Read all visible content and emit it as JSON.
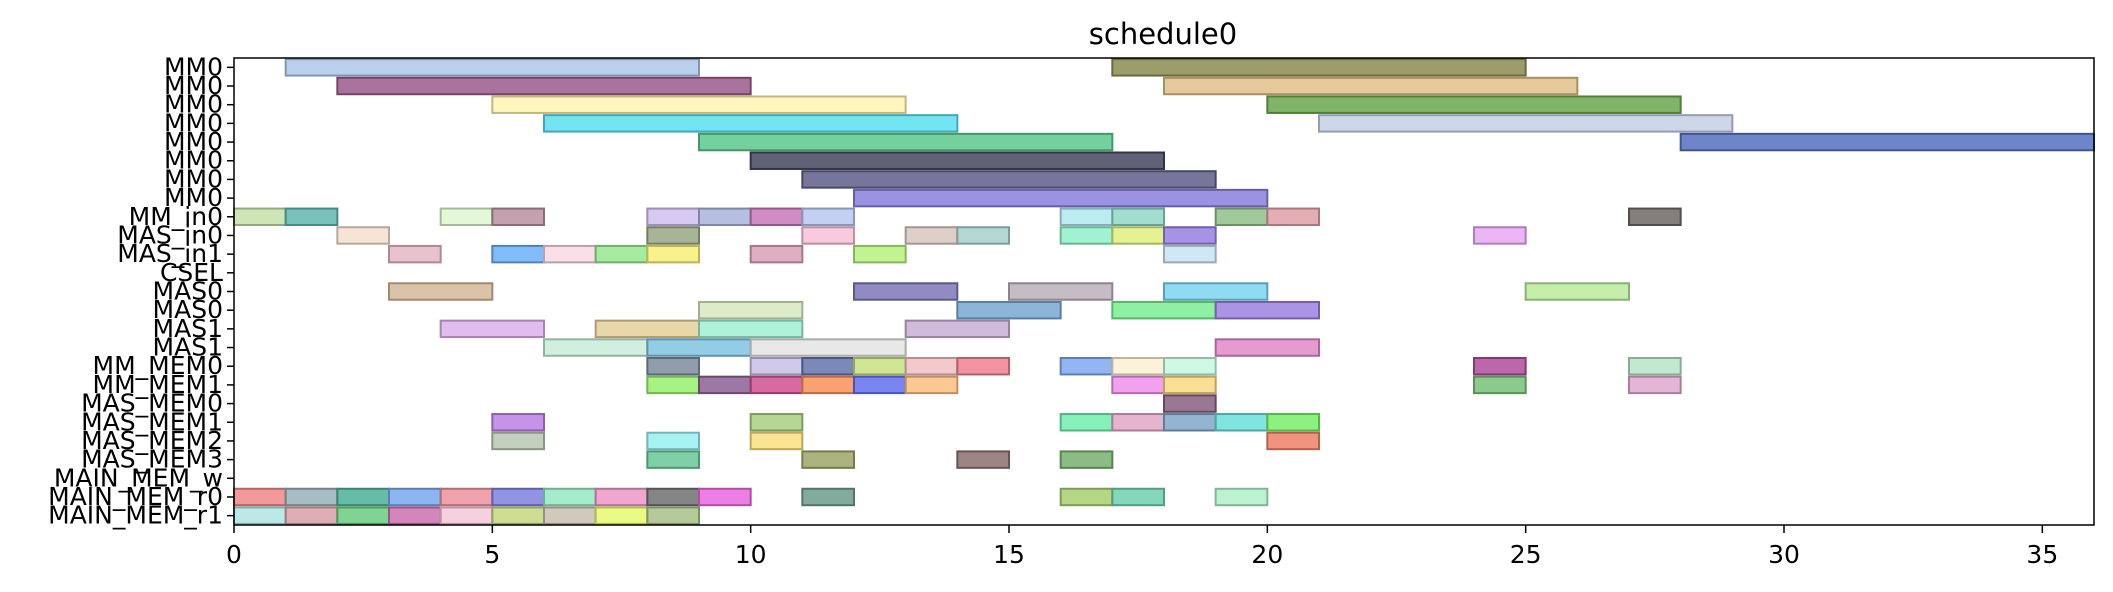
{
  "chart_data": {
    "type": "gantt",
    "title": "schedule0",
    "xlabel": "",
    "ylabel": "",
    "xlim": [
      0,
      36
    ],
    "xticks": [
      0,
      5,
      10,
      15,
      20,
      25,
      30,
      35
    ],
    "grid": false,
    "rows": [
      "MM0",
      "MM0",
      "MM0",
      "MM0",
      "MM0",
      "MM0",
      "MM0",
      "MM0",
      "MM_in0",
      "MAS_in0",
      "MAS_in1",
      "CSEL",
      "MAS0",
      "MAS0",
      "MAS1",
      "MAS1",
      "MM_MEM0",
      "MM_MEM1",
      "MAS_MEM0",
      "MAS_MEM1",
      "MAS_MEM2",
      "MAS_MEM3",
      "MAIN_MEM_w",
      "MAIN_MEM_r0",
      "MAIN_MEM_r1"
    ],
    "tasks": [
      {
        "row": 0,
        "start": 1,
        "end": 9,
        "color": "#aec7e8"
      },
      {
        "row": 0,
        "start": 17,
        "end": 25,
        "color": "#8c8c52"
      },
      {
        "row": 1,
        "start": 2,
        "end": 10,
        "color": "#9b5a8c"
      },
      {
        "row": 1,
        "start": 18,
        "end": 26,
        "color": "#e0c088"
      },
      {
        "row": 2,
        "start": 5,
        "end": 13,
        "color": "#fff5b0"
      },
      {
        "row": 2,
        "start": 20,
        "end": 28,
        "color": "#6aa84f"
      },
      {
        "row": 3,
        "start": 6,
        "end": 14,
        "color": "#5ae0f0"
      },
      {
        "row": 3,
        "start": 21,
        "end": 29,
        "color": "#c6d0e6"
      },
      {
        "row": 4,
        "start": 9,
        "end": 17,
        "color": "#5cc88c"
      },
      {
        "row": 4,
        "start": 28,
        "end": 36,
        "color": "#5470c0"
      },
      {
        "row": 5,
        "start": 10,
        "end": 18,
        "color": "#44445e"
      },
      {
        "row": 6,
        "start": 11,
        "end": 19,
        "color": "#5e5e88"
      },
      {
        "row": 7,
        "start": 12,
        "end": 20,
        "color": "#8a80dc"
      },
      {
        "row": 8,
        "start": 0,
        "end": 1,
        "color": "#c5e0a8"
      },
      {
        "row": 8,
        "start": 1,
        "end": 2,
        "color": "#5fb8b0"
      },
      {
        "row": 8,
        "start": 4,
        "end": 5,
        "color": "#ddf7d0"
      },
      {
        "row": 8,
        "start": 5,
        "end": 6,
        "color": "#b890a0"
      },
      {
        "row": 8,
        "start": 8,
        "end": 9,
        "color": "#d0c0f0"
      },
      {
        "row": 8,
        "start": 9,
        "end": 10,
        "color": "#aab4dc"
      },
      {
        "row": 8,
        "start": 10,
        "end": 11,
        "color": "#c878b8"
      },
      {
        "row": 8,
        "start": 11,
        "end": 12,
        "color": "#b8c8f0"
      },
      {
        "row": 8,
        "start": 16,
        "end": 17,
        "color": "#b0e8f0"
      },
      {
        "row": 8,
        "start": 17,
        "end": 18,
        "color": "#90d8c8"
      },
      {
        "row": 8,
        "start": 19,
        "end": 20,
        "color": "#90c088"
      },
      {
        "row": 8,
        "start": 20,
        "end": 21,
        "color": "#e0a0a8"
      },
      {
        "row": 8,
        "start": 27,
        "end": 28,
        "color": "#6e6864"
      },
      {
        "row": 9,
        "start": 2,
        "end": 3,
        "color": "#f5e0d0"
      },
      {
        "row": 9,
        "start": 8,
        "end": 9,
        "color": "#98a884"
      },
      {
        "row": 9,
        "start": 11,
        "end": 12,
        "color": "#f8c0d8"
      },
      {
        "row": 9,
        "start": 13,
        "end": 14,
        "color": "#d8c8c0"
      },
      {
        "row": 9,
        "start": 14,
        "end": 15,
        "color": "#a8d0cc"
      },
      {
        "row": 9,
        "start": 16,
        "end": 17,
        "color": "#90f0c8"
      },
      {
        "row": 9,
        "start": 17,
        "end": 18,
        "color": "#e0f080"
      },
      {
        "row": 9,
        "start": 18,
        "end": 19,
        "color": "#9880e0"
      },
      {
        "row": 9,
        "start": 24,
        "end": 25,
        "color": "#e8a8f4"
      },
      {
        "row": 10,
        "start": 3,
        "end": 4,
        "color": "#e4b8c4"
      },
      {
        "row": 10,
        "start": 5,
        "end": 6,
        "color": "#68b0f8"
      },
      {
        "row": 10,
        "start": 6,
        "end": 7,
        "color": "#f8d8e4"
      },
      {
        "row": 10,
        "start": 7,
        "end": 8,
        "color": "#98e890"
      },
      {
        "row": 10,
        "start": 8,
        "end": 9,
        "color": "#f8f078"
      },
      {
        "row": 10,
        "start": 10,
        "end": 11,
        "color": "#d8a0b8"
      },
      {
        "row": 10,
        "start": 12,
        "end": 13,
        "color": "#b8f080"
      },
      {
        "row": 10,
        "start": 18,
        "end": 19,
        "color": "#c8e4f4"
      },
      {
        "row": 12,
        "start": 3,
        "end": 5,
        "color": "#d4b898"
      },
      {
        "row": 12,
        "start": 12,
        "end": 14,
        "color": "#7c78b8"
      },
      {
        "row": 12,
        "start": 15,
        "end": 17,
        "color": "#bcb0bc"
      },
      {
        "row": 12,
        "start": 18,
        "end": 20,
        "color": "#7cd4f0"
      },
      {
        "row": 12,
        "start": 25,
        "end": 27,
        "color": "#b8ec9c"
      },
      {
        "row": 13,
        "start": 9,
        "end": 11,
        "color": "#d8e8c0"
      },
      {
        "row": 13,
        "start": 14,
        "end": 16,
        "color": "#78a8d4"
      },
      {
        "row": 13,
        "start": 17,
        "end": 19,
        "color": "#78f090"
      },
      {
        "row": 13,
        "start": 19,
        "end": 21,
        "color": "#9c80e0"
      },
      {
        "row": 14,
        "start": 4,
        "end": 6,
        "color": "#dcb0ec"
      },
      {
        "row": 14,
        "start": 7,
        "end": 9,
        "color": "#e4d098"
      },
      {
        "row": 14,
        "start": 9,
        "end": 11,
        "color": "#a0f0d4"
      },
      {
        "row": 14,
        "start": 13,
        "end": 15,
        "color": "#c8b0d4"
      },
      {
        "row": 15,
        "start": 6,
        "end": 8,
        "color": "#c8ecd8"
      },
      {
        "row": 15,
        "start": 8,
        "end": 10,
        "color": "#80c4e0"
      },
      {
        "row": 15,
        "start": 10,
        "end": 13,
        "color": "#e4e4e4"
      },
      {
        "row": 15,
        "start": 19,
        "end": 21,
        "color": "#e088c8"
      },
      {
        "row": 16,
        "start": 8,
        "end": 9,
        "color": "#7c8c9c"
      },
      {
        "row": 16,
        "start": 10,
        "end": 11,
        "color": "#c8c0e8"
      },
      {
        "row": 16,
        "start": 11,
        "end": 12,
        "color": "#6474ac"
      },
      {
        "row": 16,
        "start": 12,
        "end": 13,
        "color": "#c8e080"
      },
      {
        "row": 16,
        "start": 13,
        "end": 14,
        "color": "#f0c0c4"
      },
      {
        "row": 16,
        "start": 14,
        "end": 15,
        "color": "#f08090"
      },
      {
        "row": 16,
        "start": 16,
        "end": 17,
        "color": "#80a8f0"
      },
      {
        "row": 16,
        "start": 17,
        "end": 18,
        "color": "#fcf0d4"
      },
      {
        "row": 16,
        "start": 18,
        "end": 19,
        "color": "#c8f8e0"
      },
      {
        "row": 16,
        "start": 24,
        "end": 25,
        "color": "#b04c9c"
      },
      {
        "row": 16,
        "start": 27,
        "end": 28,
        "color": "#b8e4c8"
      },
      {
        "row": 17,
        "start": 8,
        "end": 9,
        "color": "#98f070"
      },
      {
        "row": 17,
        "start": 9,
        "end": 10,
        "color": "#8c6094"
      },
      {
        "row": 17,
        "start": 10,
        "end": 11,
        "color": "#d05090"
      },
      {
        "row": 17,
        "start": 11,
        "end": 12,
        "color": "#f89058"
      },
      {
        "row": 17,
        "start": 12,
        "end": 13,
        "color": "#6470f0"
      },
      {
        "row": 17,
        "start": 13,
        "end": 14,
        "color": "#fcc080"
      },
      {
        "row": 17,
        "start": 17,
        "end": 18,
        "color": "#f090ec"
      },
      {
        "row": 17,
        "start": 18,
        "end": 19,
        "color": "#f8d880"
      },
      {
        "row": 17,
        "start": 24,
        "end": 25,
        "color": "#78c078"
      },
      {
        "row": 17,
        "start": 27,
        "end": 28,
        "color": "#e0a8d0"
      },
      {
        "row": 18,
        "start": 18,
        "end": 19,
        "color": "#886080"
      },
      {
        "row": 19,
        "start": 5,
        "end": 6,
        "color": "#bc80e8"
      },
      {
        "row": 19,
        "start": 10,
        "end": 11,
        "color": "#a8d080"
      },
      {
        "row": 19,
        "start": 16,
        "end": 17,
        "color": "#70f0b0"
      },
      {
        "row": 19,
        "start": 17,
        "end": 18,
        "color": "#e0a8c8"
      },
      {
        "row": 19,
        "start": 18,
        "end": 19,
        "color": "#80a8c8"
      },
      {
        "row": 19,
        "start": 19,
        "end": 20,
        "color": "#68e0d8"
      },
      {
        "row": 19,
        "start": 20,
        "end": 21,
        "color": "#78f068"
      },
      {
        "row": 20,
        "start": 5,
        "end": 6,
        "color": "#b8c8b0"
      },
      {
        "row": 20,
        "start": 8,
        "end": 9,
        "color": "#98f0f0"
      },
      {
        "row": 20,
        "start": 10,
        "end": 11,
        "color": "#f8e080"
      },
      {
        "row": 20,
        "start": 20,
        "end": 21,
        "color": "#f08068"
      },
      {
        "row": 21,
        "start": 8,
        "end": 9,
        "color": "#68c898"
      },
      {
        "row": 21,
        "start": 11,
        "end": 12,
        "color": "#a0a468"
      },
      {
        "row": 21,
        "start": 14,
        "end": 15,
        "color": "#8c7070"
      },
      {
        "row": 21,
        "start": 16,
        "end": 17,
        "color": "#78b070"
      },
      {
        "row": 23,
        "start": 0,
        "end": 1,
        "color": "#f08888"
      },
      {
        "row": 23,
        "start": 1,
        "end": 2,
        "color": "#98b0b8"
      },
      {
        "row": 23,
        "start": 2,
        "end": 3,
        "color": "#4cb098"
      },
      {
        "row": 23,
        "start": 3,
        "end": 4,
        "color": "#78a8f0"
      },
      {
        "row": 23,
        "start": 4,
        "end": 5,
        "color": "#ec90a0"
      },
      {
        "row": 23,
        "start": 5,
        "end": 6,
        "color": "#8080e0"
      },
      {
        "row": 23,
        "start": 6,
        "end": 7,
        "color": "#98e8c4"
      },
      {
        "row": 23,
        "start": 7,
        "end": 8,
        "color": "#ec98c8"
      },
      {
        "row": 23,
        "start": 8,
        "end": 9,
        "color": "#707070"
      },
      {
        "row": 23,
        "start": 9,
        "end": 10,
        "color": "#e868e0"
      },
      {
        "row": 23,
        "start": 11,
        "end": 12,
        "color": "#6c9c8c"
      },
      {
        "row": 23,
        "start": 16,
        "end": 17,
        "color": "#a8d070"
      },
      {
        "row": 23,
        "start": 17,
        "end": 18,
        "color": "#70d0b0"
      },
      {
        "row": 23,
        "start": 19,
        "end": 20,
        "color": "#b0f0c8"
      },
      {
        "row": 24,
        "start": 0,
        "end": 1,
        "color": "#b0e4e4"
      },
      {
        "row": 24,
        "start": 1,
        "end": 2,
        "color": "#d8a0a8"
      },
      {
        "row": 24,
        "start": 2,
        "end": 3,
        "color": "#68cc80"
      },
      {
        "row": 24,
        "start": 3,
        "end": 4,
        "color": "#cc70b0"
      },
      {
        "row": 24,
        "start": 4,
        "end": 5,
        "color": "#f4c8d8"
      },
      {
        "row": 24,
        "start": 5,
        "end": 6,
        "color": "#c4d880"
      },
      {
        "row": 24,
        "start": 6,
        "end": 7,
        "color": "#c8c0b0"
      },
      {
        "row": 24,
        "start": 7,
        "end": 8,
        "color": "#e8f870"
      },
      {
        "row": 24,
        "start": 8,
        "end": 9,
        "color": "#a8c088"
      }
    ]
  }
}
